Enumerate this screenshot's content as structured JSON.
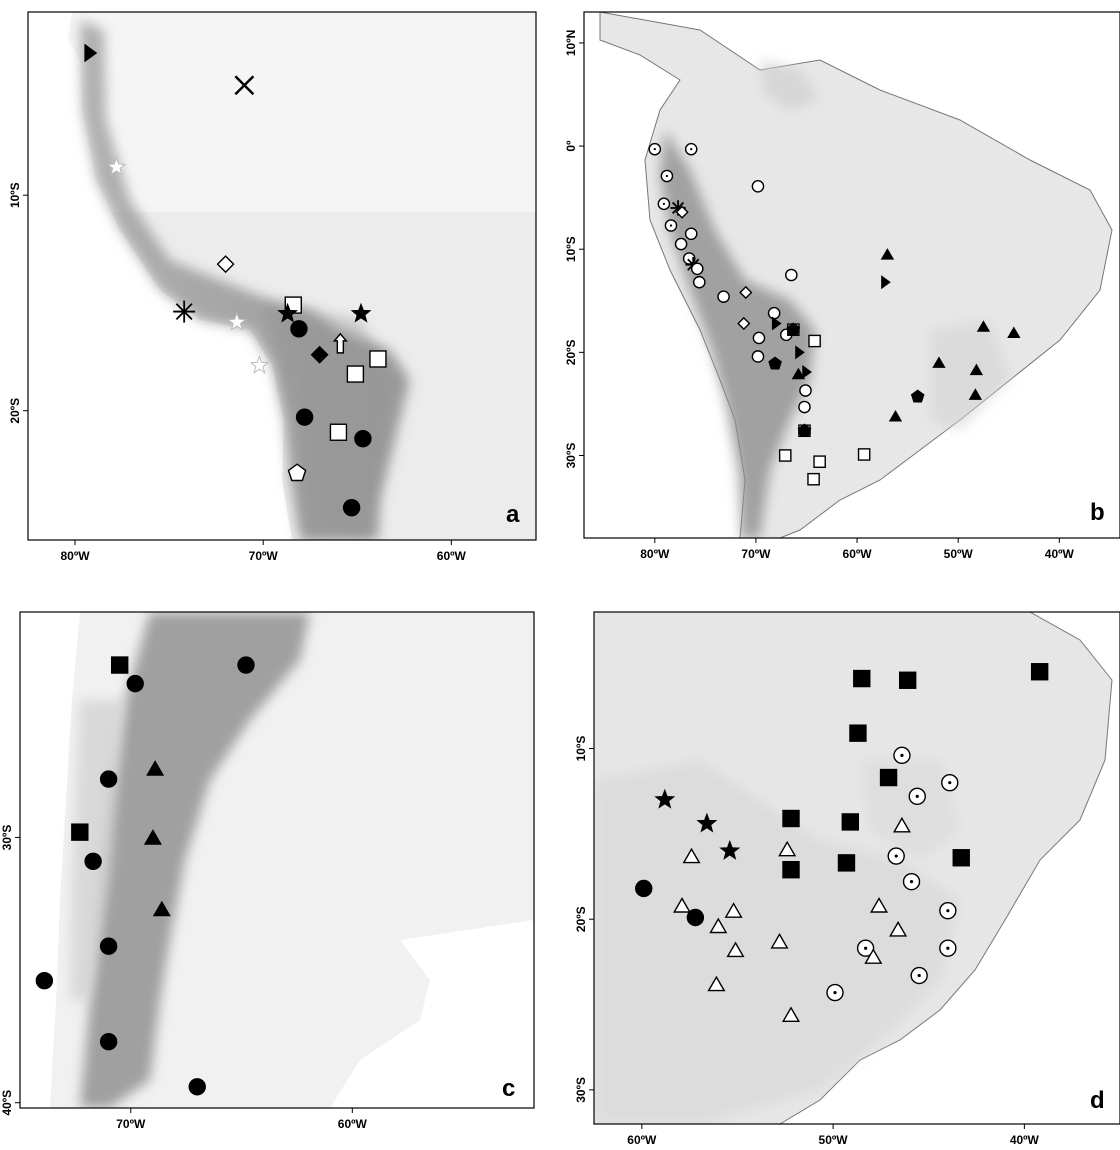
{
  "panels": [
    {
      "id": "a",
      "label": "a",
      "lon": [
        -82.5,
        -55.5
      ],
      "lat": [
        -1.5,
        -26.0
      ],
      "x_ticks": [
        {
          "lon": -80,
          "label": "80ºW"
        },
        {
          "lon": -70,
          "label": "70ºW"
        },
        {
          "lon": -60,
          "label": "60ºW"
        }
      ],
      "y_ticks": [
        {
          "lat": -10,
          "label": "10ºS"
        },
        {
          "lat": -20,
          "label": "20ºS"
        }
      ],
      "markers": [
        {
          "shape": "tri-right",
          "fill": "black",
          "lon": -79.2,
          "lat": -3.4
        },
        {
          "shape": "x-cross",
          "fill": "none",
          "lon": -71.0,
          "lat": -4.9
        },
        {
          "shape": "star",
          "fill": "white",
          "lon": -77.8,
          "lat": -8.7
        },
        {
          "shape": "diamond",
          "fill": "white",
          "lon": -72.0,
          "lat": -13.2
        },
        {
          "shape": "asterisk",
          "fill": "black",
          "lon": -74.2,
          "lat": -15.4
        },
        {
          "shape": "star",
          "fill": "white",
          "lon": -71.4,
          "lat": -15.9
        },
        {
          "shape": "star",
          "fill": "white",
          "lon": -70.2,
          "lat": -17.9
        },
        {
          "shape": "square",
          "fill": "white",
          "lon": -68.4,
          "lat": -15.1
        },
        {
          "shape": "star",
          "fill": "black",
          "lon": -68.7,
          "lat": -15.5
        },
        {
          "shape": "circle",
          "fill": "black",
          "lon": -68.1,
          "lat": -16.2
        },
        {
          "shape": "star",
          "fill": "black",
          "lon": -64.8,
          "lat": -15.5
        },
        {
          "shape": "arrow-up",
          "fill": "white",
          "lon": -65.9,
          "lat": -16.9
        },
        {
          "shape": "diamond",
          "fill": "black",
          "lon": -67.0,
          "lat": -17.4
        },
        {
          "shape": "square",
          "fill": "white",
          "lon": -63.9,
          "lat": -17.6
        },
        {
          "shape": "square",
          "fill": "white",
          "lon": -65.1,
          "lat": -18.3
        },
        {
          "shape": "circle",
          "fill": "black",
          "lon": -67.8,
          "lat": -20.3
        },
        {
          "shape": "square",
          "fill": "white",
          "lon": -66.0,
          "lat": -21.0
        },
        {
          "shape": "circle",
          "fill": "black",
          "lon": -64.7,
          "lat": -21.3
        },
        {
          "shape": "pentagon",
          "fill": "white",
          "lon": -68.2,
          "lat": -22.9
        },
        {
          "shape": "circle",
          "fill": "black",
          "lon": -65.3,
          "lat": -24.5
        }
      ]
    },
    {
      "id": "b",
      "label": "b",
      "lon": [
        -87.0,
        -34.0
      ],
      "lat": [
        13.0,
        -38.0
      ],
      "x_ticks": [
        {
          "lon": -80,
          "label": "80ºW"
        },
        {
          "lon": -70,
          "label": "70ºW"
        },
        {
          "lon": -60,
          "label": "60ºW"
        },
        {
          "lon": -50,
          "label": "50ºW"
        },
        {
          "lon": -40,
          "label": "40ºW"
        }
      ],
      "y_ticks": [
        {
          "lat": 10,
          "label": "10ºN"
        },
        {
          "lat": 0,
          "label": "0º"
        },
        {
          "lat": -10,
          "label": "10ºS"
        },
        {
          "lat": -20,
          "label": "20ºS"
        },
        {
          "lat": -30,
          "label": "30ºS"
        }
      ],
      "markers": [
        {
          "shape": "circle-dot",
          "fill": "white",
          "lon": -80.0,
          "lat": -0.3
        },
        {
          "shape": "circle-dot",
          "fill": "white",
          "lon": -76.4,
          "lat": -0.3
        },
        {
          "shape": "circle-dot",
          "fill": "white",
          "lon": -78.8,
          "lat": -2.9
        },
        {
          "shape": "circle",
          "fill": "white",
          "lon": -69.8,
          "lat": -3.9
        },
        {
          "shape": "circle-dot",
          "fill": "white",
          "lon": -79.1,
          "lat": -5.6
        },
        {
          "shape": "asterisk",
          "fill": "black",
          "lon": -77.7,
          "lat": -6.0
        },
        {
          "shape": "diamond",
          "fill": "white",
          "lon": -77.3,
          "lat": -6.4
        },
        {
          "shape": "circle-dot",
          "fill": "white",
          "lon": -78.4,
          "lat": -7.7
        },
        {
          "shape": "circle",
          "fill": "white",
          "lon": -76.4,
          "lat": -8.5
        },
        {
          "shape": "circle",
          "fill": "white",
          "lon": -77.4,
          "lat": -9.5
        },
        {
          "shape": "circle",
          "fill": "white",
          "lon": -76.6,
          "lat": -10.9
        },
        {
          "shape": "asterisk",
          "fill": "black",
          "lon": -76.2,
          "lat": -11.5
        },
        {
          "shape": "circle",
          "fill": "white",
          "lon": -75.8,
          "lat": -11.9
        },
        {
          "shape": "circle",
          "fill": "white",
          "lon": -75.6,
          "lat": -13.2
        },
        {
          "shape": "circle",
          "fill": "white",
          "lon": -73.2,
          "lat": -14.6
        },
        {
          "shape": "diamond",
          "fill": "white",
          "lon": -71.0,
          "lat": -14.2
        },
        {
          "shape": "diamond",
          "fill": "white",
          "lon": -71.2,
          "lat": -17.2
        },
        {
          "shape": "circle",
          "fill": "white",
          "lon": -66.5,
          "lat": -12.5
        },
        {
          "shape": "circle",
          "fill": "white",
          "lon": -68.2,
          "lat": -16.2
        },
        {
          "shape": "circle",
          "fill": "white",
          "lon": -69.7,
          "lat": -18.6
        },
        {
          "shape": "circle",
          "fill": "white",
          "lon": -69.8,
          "lat": -20.4
        },
        {
          "shape": "tri-right",
          "fill": "black",
          "lon": -68.0,
          "lat": -17.2
        },
        {
          "shape": "circle",
          "fill": "white",
          "lon": -67.0,
          "lat": -18.3
        },
        {
          "shape": "square",
          "fill": "white",
          "lon": -66.3,
          "lat": -17.8
        },
        {
          "shape": "pentagon",
          "fill": "black",
          "lon": -66.3,
          "lat": -17.8
        },
        {
          "shape": "square",
          "fill": "white",
          "lon": -64.2,
          "lat": -18.9
        },
        {
          "shape": "tri-right",
          "fill": "black",
          "lon": -65.7,
          "lat": -20.0
        },
        {
          "shape": "pentagon",
          "fill": "black",
          "lon": -68.1,
          "lat": -21.1
        },
        {
          "shape": "triangle",
          "fill": "black",
          "lon": -65.8,
          "lat": -22.1
        },
        {
          "shape": "tri-right",
          "fill": "black",
          "lon": -65.0,
          "lat": -21.9
        },
        {
          "shape": "circle",
          "fill": "white",
          "lon": -65.1,
          "lat": -23.7
        },
        {
          "shape": "circle",
          "fill": "white",
          "lon": -65.2,
          "lat": -25.3
        },
        {
          "shape": "square",
          "fill": "white",
          "lon": -65.2,
          "lat": -27.6
        },
        {
          "shape": "pentagon",
          "fill": "black",
          "lon": -65.2,
          "lat": -27.6
        },
        {
          "shape": "square",
          "fill": "white",
          "lon": -67.1,
          "lat": -30.0
        },
        {
          "shape": "square",
          "fill": "white",
          "lon": -63.7,
          "lat": -30.6
        },
        {
          "shape": "square",
          "fill": "white",
          "lon": -64.3,
          "lat": -32.3
        },
        {
          "shape": "square",
          "fill": "white",
          "lon": -59.3,
          "lat": -29.9
        },
        {
          "shape": "triangle",
          "fill": "black",
          "lon": -57.0,
          "lat": -10.5
        },
        {
          "shape": "tri-right",
          "fill": "black",
          "lon": -57.2,
          "lat": -13.2
        },
        {
          "shape": "triangle",
          "fill": "black",
          "lon": -47.5,
          "lat": -17.5
        },
        {
          "shape": "triangle",
          "fill": "black",
          "lon": -44.5,
          "lat": -18.1
        },
        {
          "shape": "triangle",
          "fill": "black",
          "lon": -51.9,
          "lat": -21.0
        },
        {
          "shape": "triangle",
          "fill": "black",
          "lon": -48.2,
          "lat": -21.7
        },
        {
          "shape": "triangle",
          "fill": "black",
          "lon": -48.3,
          "lat": -24.1
        },
        {
          "shape": "pentagon",
          "fill": "black",
          "lon": -54.0,
          "lat": -24.3
        },
        {
          "shape": "triangle",
          "fill": "black",
          "lon": -56.2,
          "lat": -26.2
        }
      ]
    },
    {
      "id": "c",
      "label": "c",
      "lon": [
        -75.0,
        -51.8
      ],
      "lat": [
        -21.5,
        -40.2
      ],
      "x_ticks": [
        {
          "lon": -70,
          "label": "70ºW"
        },
        {
          "lon": -60,
          "label": "60ºW"
        }
      ],
      "y_ticks": [
        {
          "lat": -30,
          "label": "30ºS"
        },
        {
          "lat": -40,
          "label": "40ºS"
        }
      ],
      "markers": [
        {
          "shape": "square",
          "fill": "black",
          "lon": -70.5,
          "lat": -23.5
        },
        {
          "shape": "circle",
          "fill": "black",
          "lon": -69.8,
          "lat": -24.2
        },
        {
          "shape": "circle",
          "fill": "black",
          "lon": -64.8,
          "lat": -23.5
        },
        {
          "shape": "circle",
          "fill": "black",
          "lon": -71.0,
          "lat": -27.8
        },
        {
          "shape": "triangle",
          "fill": "black",
          "lon": -68.9,
          "lat": -27.4
        },
        {
          "shape": "square",
          "fill": "black",
          "lon": -72.3,
          "lat": -29.8
        },
        {
          "shape": "triangle",
          "fill": "black",
          "lon": -69.0,
          "lat": -30.0
        },
        {
          "shape": "circle",
          "fill": "black",
          "lon": -71.7,
          "lat": -30.9
        },
        {
          "shape": "triangle",
          "fill": "black",
          "lon": -68.6,
          "lat": -32.7
        },
        {
          "shape": "circle",
          "fill": "black",
          "lon": -71.0,
          "lat": -34.1
        },
        {
          "shape": "circle",
          "fill": "black",
          "lon": -73.9,
          "lat": -35.4
        },
        {
          "shape": "circle",
          "fill": "black",
          "lon": -71.0,
          "lat": -37.7
        },
        {
          "shape": "circle",
          "fill": "black",
          "lon": -67.0,
          "lat": -39.4
        }
      ]
    },
    {
      "id": "d",
      "label": "d",
      "lon": [
        -62.5,
        -35.0
      ],
      "lat": [
        -2.0,
        -32.0
      ],
      "x_ticks": [
        {
          "lon": -60,
          "label": "60ºW"
        },
        {
          "lon": -50,
          "label": "50ºW"
        },
        {
          "lon": -40,
          "label": "40ºW"
        }
      ],
      "y_ticks": [
        {
          "lat": -10,
          "label": "10ºS"
        },
        {
          "lat": -20,
          "label": "20ºS"
        },
        {
          "lat": -30,
          "label": "30ºS"
        }
      ],
      "markers": [
        {
          "shape": "square",
          "fill": "black",
          "lon": -48.5,
          "lat": -5.9
        },
        {
          "shape": "square",
          "fill": "black",
          "lon": -46.1,
          "lat": -6.0
        },
        {
          "shape": "square",
          "fill": "black",
          "lon": -39.2,
          "lat": -5.5
        },
        {
          "shape": "square",
          "fill": "black",
          "lon": -48.7,
          "lat": -9.1
        },
        {
          "shape": "circle-dot",
          "fill": "white",
          "lon": -46.4,
          "lat": -10.4
        },
        {
          "shape": "square",
          "fill": "black",
          "lon": -47.1,
          "lat": -11.7
        },
        {
          "shape": "circle-dot",
          "fill": "white",
          "lon": -43.9,
          "lat": -12.0
        },
        {
          "shape": "circle-dot",
          "fill": "white",
          "lon": -45.6,
          "lat": -12.8
        },
        {
          "shape": "star",
          "fill": "black",
          "lon": -58.8,
          "lat": -13.0
        },
        {
          "shape": "square",
          "fill": "black",
          "lon": -52.2,
          "lat": -14.1
        },
        {
          "shape": "square",
          "fill": "black",
          "lon": -49.1,
          "lat": -14.3
        },
        {
          "shape": "star",
          "fill": "black",
          "lon": -56.6,
          "lat": -14.4
        },
        {
          "shape": "triangle",
          "fill": "white",
          "lon": -46.4,
          "lat": -14.5
        },
        {
          "shape": "star",
          "fill": "black",
          "lon": -55.4,
          "lat": -16.0
        },
        {
          "shape": "triangle",
          "fill": "white",
          "lon": -52.4,
          "lat": -15.9
        },
        {
          "shape": "triangle",
          "fill": "white",
          "lon": -57.4,
          "lat": -16.3
        },
        {
          "shape": "circle-dot",
          "fill": "white",
          "lon": -46.7,
          "lat": -16.3
        },
        {
          "shape": "square",
          "fill": "black",
          "lon": -49.3,
          "lat": -16.7
        },
        {
          "shape": "square",
          "fill": "black",
          "lon": -52.2,
          "lat": -17.1
        },
        {
          "shape": "square",
          "fill": "black",
          "lon": -43.3,
          "lat": -16.4
        },
        {
          "shape": "circle-dot",
          "fill": "white",
          "lon": -45.9,
          "lat": -17.8
        },
        {
          "shape": "circle",
          "fill": "black",
          "lon": -59.9,
          "lat": -18.2
        },
        {
          "shape": "circle",
          "fill": "black",
          "lon": -57.2,
          "lat": -19.9
        },
        {
          "shape": "triangle",
          "fill": "white",
          "lon": -57.9,
          "lat": -19.2
        },
        {
          "shape": "triangle",
          "fill": "white",
          "lon": -55.2,
          "lat": -19.5
        },
        {
          "shape": "triangle",
          "fill": "white",
          "lon": -47.6,
          "lat": -19.2
        },
        {
          "shape": "circle-dot",
          "fill": "white",
          "lon": -44.0,
          "lat": -19.5
        },
        {
          "shape": "triangle",
          "fill": "white",
          "lon": -56.0,
          "lat": -20.4
        },
        {
          "shape": "triangle",
          "fill": "white",
          "lon": -46.6,
          "lat": -20.6
        },
        {
          "shape": "triangle",
          "fill": "white",
          "lon": -52.8,
          "lat": -21.3
        },
        {
          "shape": "triangle",
          "fill": "white",
          "lon": -55.1,
          "lat": -21.8
        },
        {
          "shape": "circle-dot",
          "fill": "white",
          "lon": -48.3,
          "lat": -21.7
        },
        {
          "shape": "triangle",
          "fill": "white",
          "lon": -47.9,
          "lat": -22.2
        },
        {
          "shape": "circle-dot",
          "fill": "white",
          "lon": -44.0,
          "lat": -21.7
        },
        {
          "shape": "circle-dot",
          "fill": "white",
          "lon": -45.5,
          "lat": -23.3
        },
        {
          "shape": "triangle",
          "fill": "white",
          "lon": -56.1,
          "lat": -23.8
        },
        {
          "shape": "circle-dot",
          "fill": "white",
          "lon": -49.9,
          "lat": -24.3
        },
        {
          "shape": "triangle",
          "fill": "white",
          "lon": -52.2,
          "lat": -25.6
        }
      ]
    }
  ]
}
